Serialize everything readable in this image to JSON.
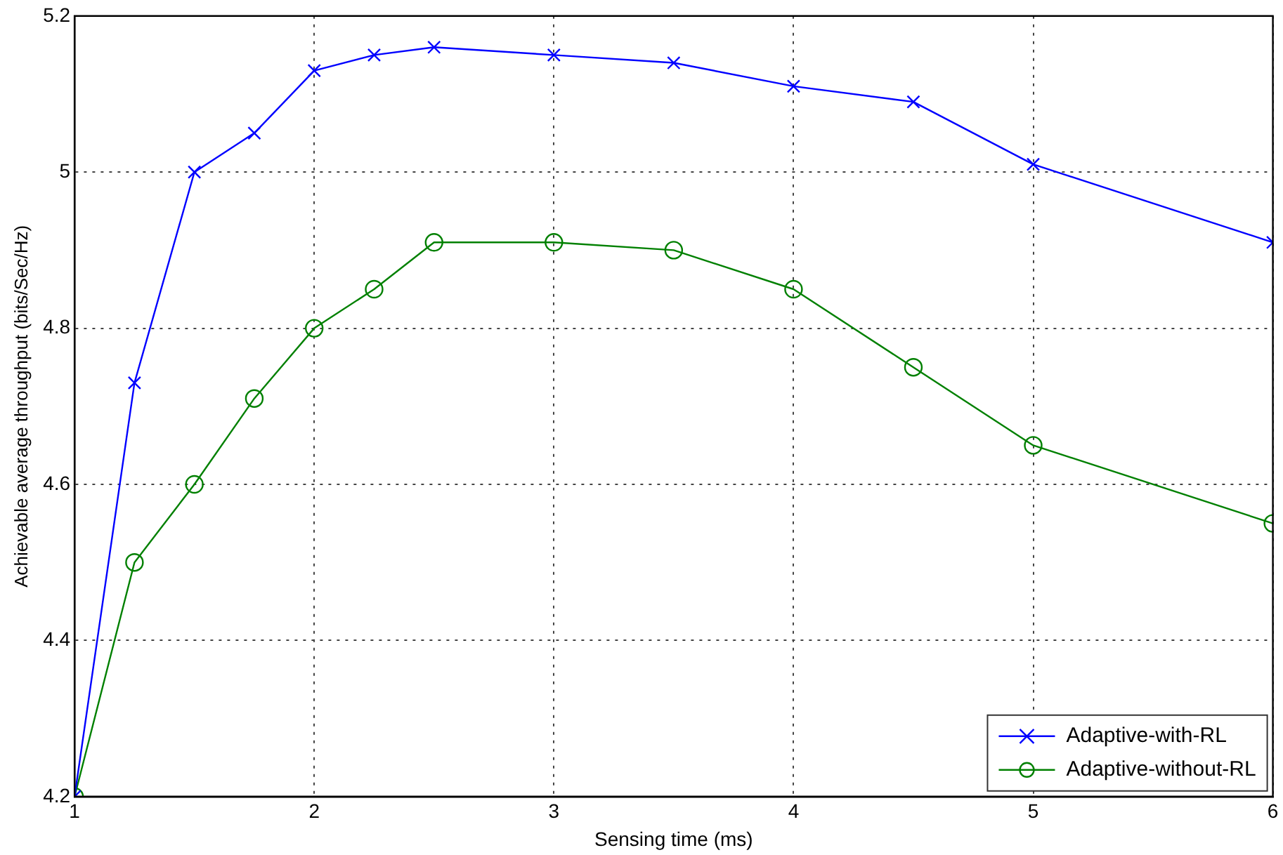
{
  "chart_data": {
    "type": "line",
    "xlabel": "Sensing time (ms)",
    "ylabel": "Achievable average throughput (bits/Sec/Hz)",
    "x": [
      1,
      1.25,
      1.5,
      1.75,
      2,
      2.25,
      2.5,
      3,
      3.5,
      4,
      4.5,
      5,
      6
    ],
    "series": [
      {
        "name": "Adaptive-with-RL",
        "color": "#0000ff",
        "marker": "cross",
        "values": [
          4.2,
          4.73,
          5.0,
          5.05,
          5.13,
          5.15,
          5.16,
          5.15,
          5.14,
          5.11,
          5.09,
          5.01,
          4.91
        ]
      },
      {
        "name": "Adaptive-without-RL",
        "color": "#008000",
        "marker": "circle",
        "values": [
          4.2,
          4.5,
          4.6,
          4.71,
          4.8,
          4.85,
          4.91,
          4.91,
          4.9,
          4.85,
          4.75,
          4.65,
          4.55
        ]
      }
    ],
    "xlim": [
      1,
      6
    ],
    "xticks": [
      1,
      2,
      3,
      4,
      5,
      6
    ],
    "ylim": [
      4.2,
      5.2
    ],
    "yticks": [
      4.2,
      4.4,
      4.6,
      4.8,
      5,
      5.2
    ],
    "grid": true,
    "legend": "bottom right",
    "line_style": "solid"
  }
}
